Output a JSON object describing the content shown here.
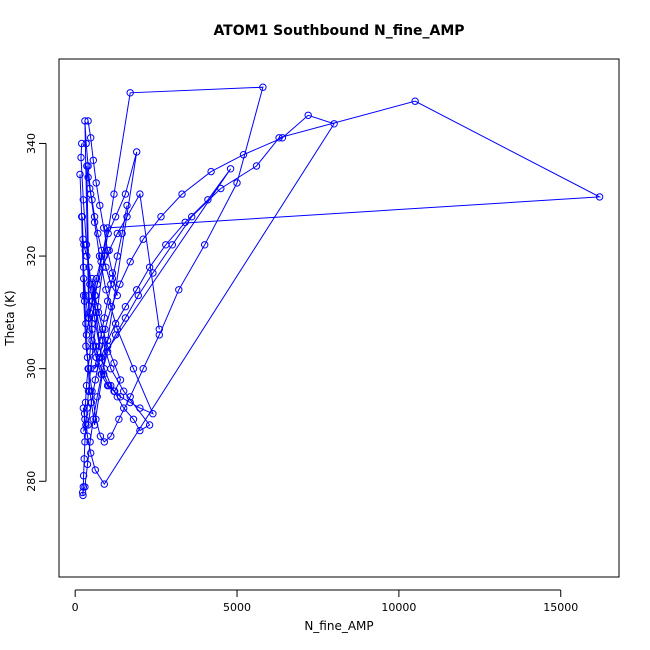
{
  "chart_data": {
    "type": "line",
    "title": "ATOM1 Southbound N_fine_AMP",
    "xlabel": "N_fine_AMP",
    "ylabel": "Theta (K)",
    "xlim": [
      -500,
      16800
    ],
    "ylim": [
      263,
      355
    ],
    "xticks": [
      0,
      5000,
      10000,
      15000
    ],
    "yticks": [
      280,
      300,
      320,
      340
    ],
    "grid": false,
    "legend": "none",
    "color": "#0000ff",
    "marker": "open-circle",
    "series": [
      {
        "x": [
          150,
          200,
          260,
          330,
          420,
          520,
          640,
          780,
          900,
          1100,
          1350,
          1700,
          2100,
          2600,
          3200,
          4000,
          5000,
          5800,
          1700,
          1200,
          900,
          700,
          560,
          480,
          410,
          370,
          330,
          300,
          280,
          260,
          250,
          240,
          230,
          300,
          380,
          460,
          560,
          680,
          820,
          1000,
          1250,
          1550,
          1950,
          2400,
          3000,
          3600,
          4500,
          5600,
          6300,
          10500,
          16200,
          1000,
          800,
          620,
          520,
          460,
          400,
          350,
          320,
          290,
          270,
          400,
          500,
          620,
          760,
          920,
          1120,
          1380,
          1700,
          2100,
          2650,
          3300,
          4200,
          5200,
          6400,
          7200,
          8000,
          900,
          620,
          480,
          380,
          300,
          250
        ],
        "y": [
          334.5,
          327,
          313,
          304,
          300,
          296,
          291,
          288,
          287,
          288,
          291,
          295,
          300,
          306,
          314,
          322,
          333,
          350,
          349,
          331,
          320,
          311,
          304,
          300,
          296,
          293,
          290,
          287,
          284,
          281,
          279,
          277.5,
          278,
          279,
          283,
          287,
          291,
          295,
          299,
          303,
          306,
          309,
          313,
          317,
          322,
          327,
          332,
          336,
          341,
          347.5,
          330.5,
          325,
          319,
          313,
          308,
          303,
          300,
          297,
          294,
          292,
          289,
          290,
          294,
          298,
          302,
          307,
          311,
          315,
          319,
          323,
          327,
          331,
          335,
          338,
          341,
          345,
          343.5,
          279.5,
          282,
          285,
          288,
          291,
          293
        ]
      },
      {
        "x": [
          200,
          180,
          250,
          350,
          450,
          600,
          750,
          900,
          1100,
          1300,
          1500,
          1800,
          2000,
          2300,
          1500,
          1100,
          850,
          650,
          520,
          430,
          360,
          310,
          270,
          240,
          220,
          260,
          320,
          400,
          520,
          650,
          800,
          1000,
          1200,
          1400,
          1700,
          2000,
          2400,
          1800,
          1300,
          950,
          750,
          600,
          480,
          400,
          340,
          300,
          420,
          520,
          660,
          820,
          1020,
          1250,
          1550,
          1900,
          600,
          450,
          380,
          330,
          290,
          260,
          350,
          430,
          540,
          680,
          850,
          1050,
          1300,
          1600,
          2000,
          2600
        ],
        "y": [
          340,
          337.5,
          330,
          322,
          315,
          309,
          304,
          300,
          297,
          295,
          293,
          291,
          289,
          290,
          296,
          300,
          305,
          310,
          314,
          318,
          320,
          321,
          322,
          323,
          327,
          318,
          313,
          309,
          305,
          302,
          299,
          297,
          296,
          295,
          294,
          293,
          292,
          300,
          307,
          314,
          320,
          326,
          331,
          336,
          340,
          344,
          309,
          312,
          316,
          320,
          324,
          327,
          331,
          338.5,
          290,
          296,
          302,
          308,
          312,
          316,
          306,
          309,
          312,
          315,
          318,
          321,
          324,
          327,
          331,
          307
        ]
      },
      {
        "x": [
          400,
          480,
          560,
          650,
          760,
          880,
          1000,
          1150,
          1300,
          1100,
          950,
          820,
          700,
          600,
          520,
          450,
          400,
          360,
          440,
          520,
          620,
          740,
          880,
          1040,
          1220,
          1400,
          1200,
          1000,
          850,
          720,
          610,
          520,
          800,
          1000,
          1250,
          1550,
          1900,
          2300,
          2800,
          3400,
          4100,
          4800,
          600,
          700,
          800,
          900,
          1000,
          1150,
          1300,
          1450,
          1600
        ],
        "y": [
          344,
          341,
          337,
          333,
          329,
          325,
          321,
          317,
          313,
          315,
          318,
          321,
          324,
          327,
          330,
          332,
          334,
          336,
          310,
          307,
          304,
          301,
          299,
          297,
          296,
          298,
          301,
          304,
          307,
          310,
          313,
          316,
          302,
          305,
          308,
          311,
          314,
          318,
          322,
          326,
          330,
          335.5,
          300,
          303,
          306,
          309,
          312,
          316,
          320,
          324,
          329
        ]
      }
    ]
  }
}
